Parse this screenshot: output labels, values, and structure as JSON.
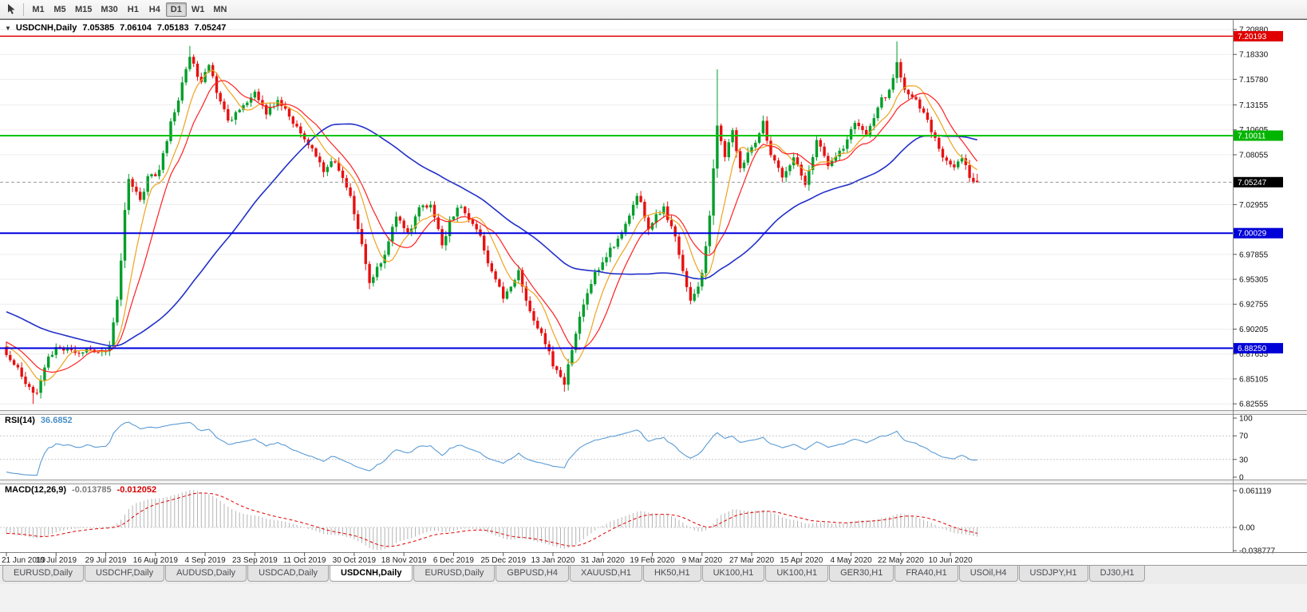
{
  "toolbar": {
    "timeframes": [
      "M1",
      "M5",
      "M15",
      "M30",
      "H1",
      "H4",
      "D1",
      "W1",
      "MN"
    ],
    "active": "D1"
  },
  "chart": {
    "title": {
      "symbol": "USDCNH,Daily",
      "open": "7.05385",
      "high": "7.06104",
      "low": "7.05183",
      "close": "7.05247"
    },
    "rsi_label": "RSI(14)",
    "rsi_value": "36.6852",
    "macd_label": "MACD(12,26,9)",
    "macd_value_main": "-0.013785",
    "macd_value_signal": "-0.012052"
  },
  "price_axis": {
    "labels": [
      "7.20880",
      "7.18330",
      "7.15780",
      "7.13155",
      "7.10605",
      "7.08055",
      "7.02955",
      "6.97855",
      "6.95305",
      "6.92755",
      "6.90205",
      "6.87655",
      "6.85105",
      "6.82555"
    ],
    "badges": [
      {
        "value": "7.20193",
        "price": 7.20193,
        "bg": "#e00000"
      },
      {
        "value": "7.10011",
        "price": 7.10011,
        "bg": "#00b400"
      },
      {
        "value": "7.05247",
        "price": 7.05247,
        "bg": "#000000"
      },
      {
        "value": "7.00029",
        "price": 7.00029,
        "bg": "#0000d8"
      },
      {
        "value": "6.88250",
        "price": 6.8825,
        "bg": "#0000d8"
      }
    ]
  },
  "hlines": [
    {
      "price": 7.20193,
      "color": "#e00000",
      "width": 1.4
    },
    {
      "price": 7.10011,
      "color": "#00c400",
      "width": 2
    },
    {
      "price": 7.00029,
      "color": "#0000e0",
      "width": 2
    },
    {
      "price": 6.8825,
      "color": "#0000e0",
      "width": 2
    }
  ],
  "rsi_axis": [
    "100",
    "70",
    "30",
    "0"
  ],
  "macd_axis": [
    "0.061119",
    "0.00",
    "-0.038777"
  ],
  "date_axis": [
    "21 Jun 2019",
    "10 Jul 2019",
    "29 Jul 2019",
    "16 Aug 2019",
    "4 Sep 2019",
    "23 Sep 2019",
    "11 Oct 2019",
    "30 Oct 2019",
    "18 Nov 2019",
    "6 Dec 2019",
    "25 Dec 2019",
    "13 Jan 2020",
    "31 Jan 2020",
    "19 Feb 2020",
    "9 Mar 2020",
    "27 Mar 2020",
    "15 Apr 2020",
    "4 May 2020",
    "22 May 2020",
    "10 Jun 2020"
  ],
  "tabs": [
    {
      "label": "EURUSD,Daily",
      "active": false
    },
    {
      "label": "USDCHF,Daily",
      "active": false
    },
    {
      "label": "AUDUSD,Daily",
      "active": false
    },
    {
      "label": "USDCAD,Daily",
      "active": false
    },
    {
      "label": "USDCNH,Daily",
      "active": true
    },
    {
      "label": "EURUSD,Daily",
      "active": false
    },
    {
      "label": "GBPUSD,H4",
      "active": false
    },
    {
      "label": "XAUUSD,H1",
      "active": false
    },
    {
      "label": "HK50,H1",
      "active": false
    },
    {
      "label": "UK100,H1",
      "active": false
    },
    {
      "label": "UK100,H1",
      "active": false
    },
    {
      "label": "GER30,H1",
      "active": false
    },
    {
      "label": "FRA40,H1",
      "active": false
    },
    {
      "label": "USOil,H4",
      "active": false
    },
    {
      "label": "USDJPY,H1",
      "active": false
    },
    {
      "label": "DJ30,H1",
      "active": false
    }
  ],
  "chart_data": {
    "type": "candlestick",
    "symbol": "USDCNH",
    "timeframe": "Daily",
    "title": "USDCNH,Daily",
    "last_ohlc": {
      "open": 7.05385,
      "high": 7.06104,
      "low": 7.05183,
      "close": 7.05247
    },
    "n_candles": 255,
    "price_range": {
      "top": 7.2194,
      "bottom": 6.8191
    },
    "x_range": [
      "21 Jun 2019",
      "23 Jun 2020"
    ],
    "anchors": [
      [
        0,
        6.878
      ],
      [
        3,
        6.862
      ],
      [
        6,
        6.842
      ],
      [
        8,
        6.836
      ],
      [
        11,
        6.874
      ],
      [
        14,
        6.884
      ],
      [
        18,
        6.876
      ],
      [
        21,
        6.881
      ],
      [
        24,
        6.878
      ],
      [
        27,
        6.884
      ],
      [
        29,
        6.93
      ],
      [
        30,
        6.97
      ],
      [
        31,
        7.025
      ],
      [
        32,
        7.058
      ],
      [
        34,
        7.042
      ],
      [
        35,
        7.034
      ],
      [
        37,
        7.058
      ],
      [
        40,
        7.064
      ],
      [
        43,
        7.112
      ],
      [
        45,
        7.136
      ],
      [
        47,
        7.168
      ],
      [
        48,
        7.182
      ],
      [
        50,
        7.162
      ],
      [
        51,
        7.152
      ],
      [
        53,
        7.172
      ],
      [
        55,
        7.146
      ],
      [
        58,
        7.112
      ],
      [
        61,
        7.128
      ],
      [
        65,
        7.146
      ],
      [
        68,
        7.124
      ],
      [
        71,
        7.136
      ],
      [
        75,
        7.114
      ],
      [
        80,
        7.086
      ],
      [
        83,
        7.064
      ],
      [
        86,
        7.076
      ],
      [
        90,
        7.036
      ],
      [
        93,
        6.99
      ],
      [
        95,
        6.948
      ],
      [
        99,
        6.976
      ],
      [
        102,
        7.02
      ],
      [
        105,
        7.0
      ],
      [
        108,
        7.024
      ],
      [
        111,
        7.03
      ],
      [
        114,
        6.986
      ],
      [
        116,
        7.014
      ],
      [
        119,
        7.03
      ],
      [
        124,
        6.996
      ],
      [
        127,
        6.96
      ],
      [
        130,
        6.936
      ],
      [
        134,
        6.96
      ],
      [
        137,
        6.92
      ],
      [
        140,
        6.896
      ],
      [
        143,
        6.866
      ],
      [
        146,
        6.848
      ],
      [
        148,
        6.88
      ],
      [
        151,
        6.93
      ],
      [
        154,
        6.958
      ],
      [
        157,
        6.976
      ],
      [
        160,
        6.996
      ],
      [
        163,
        7.02
      ],
      [
        165,
        7.04
      ],
      [
        168,
        7.006
      ],
      [
        172,
        7.026
      ],
      [
        175,
        6.996
      ],
      [
        177,
        6.962
      ],
      [
        179,
        6.93
      ],
      [
        182,
        6.956
      ],
      [
        184,
        7.02
      ],
      [
        186,
        7.108
      ],
      [
        188,
        7.08
      ],
      [
        190,
        7.104
      ],
      [
        192,
        7.068
      ],
      [
        196,
        7.094
      ],
      [
        198,
        7.114
      ],
      [
        200,
        7.08
      ],
      [
        203,
        7.06
      ],
      [
        206,
        7.076
      ],
      [
        209,
        7.05
      ],
      [
        212,
        7.094
      ],
      [
        215,
        7.07
      ],
      [
        219,
        7.086
      ],
      [
        222,
        7.114
      ],
      [
        225,
        7.1
      ],
      [
        228,
        7.13
      ],
      [
        231,
        7.146
      ],
      [
        233,
        7.174
      ],
      [
        235,
        7.146
      ],
      [
        238,
        7.136
      ],
      [
        242,
        7.106
      ],
      [
        245,
        7.076
      ],
      [
        248,
        7.066
      ],
      [
        250,
        7.08
      ],
      [
        252,
        7.058
      ],
      [
        254,
        7.05247
      ]
    ],
    "wicks": [
      {
        "i": 7,
        "low": 6.8255
      },
      {
        "i": 48,
        "high": 7.192
      },
      {
        "i": 146,
        "low": 6.838
      },
      {
        "i": 186,
        "high": 7.168
      },
      {
        "i": 233,
        "high": 7.1965
      }
    ],
    "warmup": {
      "n": 60,
      "from": 6.968,
      "to": 6.882
    },
    "up_color": "#009e2a",
    "down_color": "#e81010",
    "moving_averages": [
      {
        "period": 8,
        "color": "#eea320",
        "width": 1.2
      },
      {
        "period": 13,
        "color": "#ff2020",
        "width": 1.2
      },
      {
        "period": 55,
        "color": "#2230c8",
        "width": 1.6
      }
    ],
    "h_lines": [
      7.20193,
      7.10011,
      7.00029,
      6.8825
    ],
    "indicators": {
      "rsi": {
        "period": 14,
        "value": 36.6852,
        "color": "#5b9bd5",
        "levels": [
          70,
          30
        ],
        "axis": [
          100,
          70,
          30,
          0
        ]
      },
      "macd": {
        "fast": 12,
        "slow": 26,
        "signal": 9,
        "value": -0.013785,
        "signal_value": -0.012052,
        "hist_color": "#b4b4b4",
        "signal_color": "#e00000",
        "axis": [
          0.061119,
          0.0,
          -0.038777
        ]
      }
    }
  }
}
